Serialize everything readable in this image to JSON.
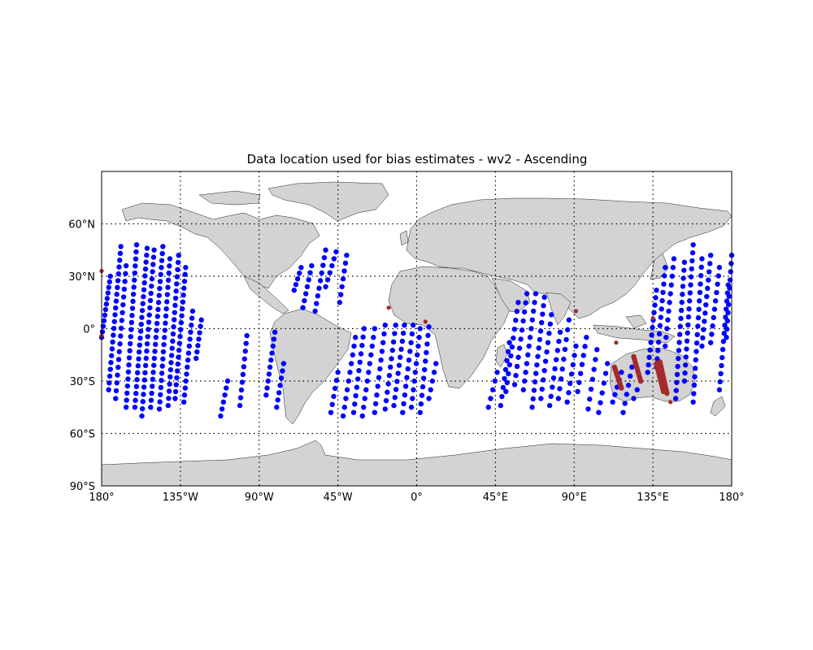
{
  "chart_data": {
    "type": "scatter",
    "title": "Data location used for bias estimates - wv2 - Ascending",
    "projection": "equirectangular",
    "grid": true,
    "xlim": [
      -180,
      180
    ],
    "ylim": [
      -90,
      90
    ],
    "x_ticks": [
      {
        "value": -180,
        "label": "180°"
      },
      {
        "value": -135,
        "label": "135°W"
      },
      {
        "value": -90,
        "label": "90°W"
      },
      {
        "value": -45,
        "label": "45°W"
      },
      {
        "value": 0,
        "label": "0°"
      },
      {
        "value": 45,
        "label": "45°E"
      },
      {
        "value": 90,
        "label": "90°E"
      },
      {
        "value": 135,
        "label": "135°E"
      },
      {
        "value": 180,
        "label": "180°"
      }
    ],
    "y_ticks": [
      {
        "value": 60,
        "label": "60°N"
      },
      {
        "value": 30,
        "label": "30°N"
      },
      {
        "value": 0,
        "label": "0°"
      },
      {
        "value": -30,
        "label": "30°S"
      },
      {
        "value": -60,
        "label": "60°S"
      },
      {
        "value": -90,
        "label": "90°S"
      }
    ],
    "colors": {
      "ocean_points": "#0000ff",
      "land_points": "#a52a2a",
      "land": "#d3d3d3",
      "coast": "#222222"
    },
    "tracks": [
      {
        "lon0": -180,
        "lat0": -5,
        "lon1": -175,
        "lat1": 30,
        "n": 12
      },
      {
        "lon0": -176,
        "lat0": -35,
        "lon1": -169,
        "lat1": 47,
        "n": 22
      },
      {
        "lon0": -172,
        "lat0": -40,
        "lon1": -166,
        "lat1": 36,
        "n": 18
      },
      {
        "lon0": -166,
        "lat0": -45,
        "lon1": -160,
        "lat1": 48,
        "n": 24
      },
      {
        "lon0": -161,
        "lat0": -45,
        "lon1": -154,
        "lat1": 46,
        "n": 24
      },
      {
        "lon0": -157,
        "lat0": -50,
        "lon1": -150,
        "lat1": 45,
        "n": 24
      },
      {
        "lon0": -152,
        "lat0": -45,
        "lon1": -145,
        "lat1": 47,
        "n": 24
      },
      {
        "lon0": -147,
        "lat0": -46,
        "lon1": -141,
        "lat1": 40,
        "n": 22
      },
      {
        "lon0": -142,
        "lat0": -44,
        "lon1": -136,
        "lat1": 42,
        "n": 22
      },
      {
        "lon0": -138,
        "lat0": -40,
        "lon1": -132,
        "lat1": 35,
        "n": 20
      },
      {
        "lon0": -133,
        "lat0": -42,
        "lon1": -128,
        "lat1": 10,
        "n": 14
      },
      {
        "lon0": -126,
        "lat0": -17,
        "lon1": -123,
        "lat1": 5,
        "n": 7
      },
      {
        "lon0": -112,
        "lat0": -50,
        "lon1": -108,
        "lat1": -30,
        "n": 6
      },
      {
        "lon0": -101,
        "lat0": -44,
        "lon1": -97,
        "lat1": -4,
        "n": 10
      },
      {
        "lon0": -86,
        "lat0": -38,
        "lon1": -81,
        "lat1": -2,
        "n": 10
      },
      {
        "lon0": -80,
        "lat0": -45,
        "lon1": -76,
        "lat1": -20,
        "n": 7
      },
      {
        "lon0": -70,
        "lat0": 22,
        "lon1": -66,
        "lat1": 35,
        "n": 5
      },
      {
        "lon0": -65,
        "lat0": 12,
        "lon1": -60,
        "lat1": 36,
        "n": 7
      },
      {
        "lon0": -58,
        "lat0": 10,
        "lon1": -52,
        "lat1": 45,
        "n": 9
      },
      {
        "lon0": -52,
        "lat0": 24,
        "lon1": -46,
        "lat1": 44,
        "n": 6
      },
      {
        "lon0": -44,
        "lat0": 15,
        "lon1": -40,
        "lat1": 42,
        "n": 7
      },
      {
        "lon0": -49,
        "lat0": -48,
        "lon1": -45,
        "lat1": -25,
        "n": 6
      },
      {
        "lon0": -42,
        "lat0": -50,
        "lon1": -35,
        "lat1": -5,
        "n": 10
      },
      {
        "lon0": -36,
        "lat0": -48,
        "lon1": -30,
        "lat1": 0,
        "n": 11
      },
      {
        "lon0": -31,
        "lat0": -50,
        "lon1": -24,
        "lat1": 0,
        "n": 11
      },
      {
        "lon0": -24,
        "lat0": -48,
        "lon1": -18,
        "lat1": 2,
        "n": 11
      },
      {
        "lon0": -18,
        "lat0": -46,
        "lon1": -12,
        "lat1": 2,
        "n": 11
      },
      {
        "lon0": -13,
        "lat0": -44,
        "lon1": -7,
        "lat1": 2,
        "n": 11
      },
      {
        "lon0": -8,
        "lat0": -48,
        "lon1": -2,
        "lat1": 2,
        "n": 11
      },
      {
        "lon0": -3,
        "lat0": -45,
        "lon1": 2,
        "lat1": 0,
        "n": 10
      },
      {
        "lon0": 2,
        "lat0": -48,
        "lon1": 7,
        "lat1": 1,
        "n": 11
      },
      {
        "lon0": 7,
        "lat0": -40,
        "lon1": 11,
        "lat1": -20,
        "n": 5
      },
      {
        "lon0": 41,
        "lat0": -45,
        "lon1": 46,
        "lat1": -25,
        "n": 5
      },
      {
        "lon0": 48,
        "lat0": -44,
        "lon1": 53,
        "lat1": -8,
        "n": 8
      },
      {
        "lon0": 51,
        "lat0": -36,
        "lon1": 58,
        "lat1": 15,
        "n": 11
      },
      {
        "lon0": 56,
        "lat0": -32,
        "lon1": 63,
        "lat1": 20,
        "n": 11
      },
      {
        "lon0": 61,
        "lat0": -35,
        "lon1": 68,
        "lat1": 20,
        "n": 12
      },
      {
        "lon0": 66,
        "lat0": -45,
        "lon1": 73,
        "lat1": 18,
        "n": 14
      },
      {
        "lon0": 71,
        "lat0": -40,
        "lon1": 77,
        "lat1": 8,
        "n": 10
      },
      {
        "lon0": 76,
        "lat0": -44,
        "lon1": 82,
        "lat1": -2,
        "n": 9
      },
      {
        "lon0": 81,
        "lat0": -40,
        "lon1": 87,
        "lat1": 5,
        "n": 9
      },
      {
        "lon0": 86,
        "lat0": -42,
        "lon1": 91,
        "lat1": -10,
        "n": 7
      },
      {
        "lon0": 92,
        "lat0": -36,
        "lon1": 97,
        "lat1": -5,
        "n": 7
      },
      {
        "lon0": 98,
        "lat0": -46,
        "lon1": 103,
        "lat1": -12,
        "n": 7
      },
      {
        "lon0": 104,
        "lat0": -48,
        "lon1": 109,
        "lat1": -20,
        "n": 6
      },
      {
        "lon0": 112,
        "lat0": -42,
        "lon1": 117,
        "lat1": -25,
        "n": 5
      },
      {
        "lon0": 118,
        "lat0": -48,
        "lon1": 123,
        "lat1": -22,
        "n": 6
      },
      {
        "lon0": 124,
        "lat0": -40,
        "lon1": 128,
        "lat1": -30,
        "n": 3
      },
      {
        "lon0": 132,
        "lat0": -25,
        "lon1": 137,
        "lat1": 22,
        "n": 12
      },
      {
        "lon0": 137,
        "lat0": -22,
        "lon1": 142,
        "lat1": 35,
        "n": 13
      },
      {
        "lon0": 142,
        "lat0": -10,
        "lon1": 147,
        "lat1": 40,
        "n": 11
      },
      {
        "lon0": 148,
        "lat0": -40,
        "lon1": 153,
        "lat1": 38,
        "n": 18
      },
      {
        "lon0": 153,
        "lat0": -30,
        "lon1": 158,
        "lat1": 48,
        "n": 18
      },
      {
        "lon0": 158,
        "lat0": -42,
        "lon1": 163,
        "lat1": 40,
        "n": 18
      },
      {
        "lon0": 163,
        "lat0": -10,
        "lon1": 168,
        "lat1": 42,
        "n": 12
      },
      {
        "lon0": 168,
        "lat0": -8,
        "lon1": 173,
        "lat1": 35,
        "n": 10
      },
      {
        "lon0": 173,
        "lat0": -35,
        "lon1": 178,
        "lat1": 25,
        "n": 14
      },
      {
        "lon0": 177,
        "lat0": -5,
        "lon1": 180,
        "lat1": 42,
        "n": 11
      }
    ],
    "land_tracks": [
      {
        "lon0": 113,
        "lat0": -22,
        "lon1": 117,
        "lat1": -34,
        "n": 12
      },
      {
        "lon0": 124,
        "lat0": -16,
        "lon1": 128,
        "lat1": -30,
        "n": 12
      },
      {
        "lon0": 137,
        "lat0": -20,
        "lon1": 141,
        "lat1": -36,
        "n": 14
      },
      {
        "lon0": 139,
        "lat0": -19,
        "lon1": 143,
        "lat1": -37,
        "n": 14
      }
    ],
    "land_points": [
      {
        "lon": -180,
        "lat": 33
      },
      {
        "lon": -16,
        "lat": 12
      },
      {
        "lon": 5,
        "lat": 4
      },
      {
        "lon": 91,
        "lat": 10
      },
      {
        "lon": 114,
        "lat": -8
      },
      {
        "lon": 135,
        "lat": 6
      },
      {
        "lon": 145,
        "lat": -42
      },
      {
        "lon": -180,
        "lat": -4
      }
    ]
  }
}
